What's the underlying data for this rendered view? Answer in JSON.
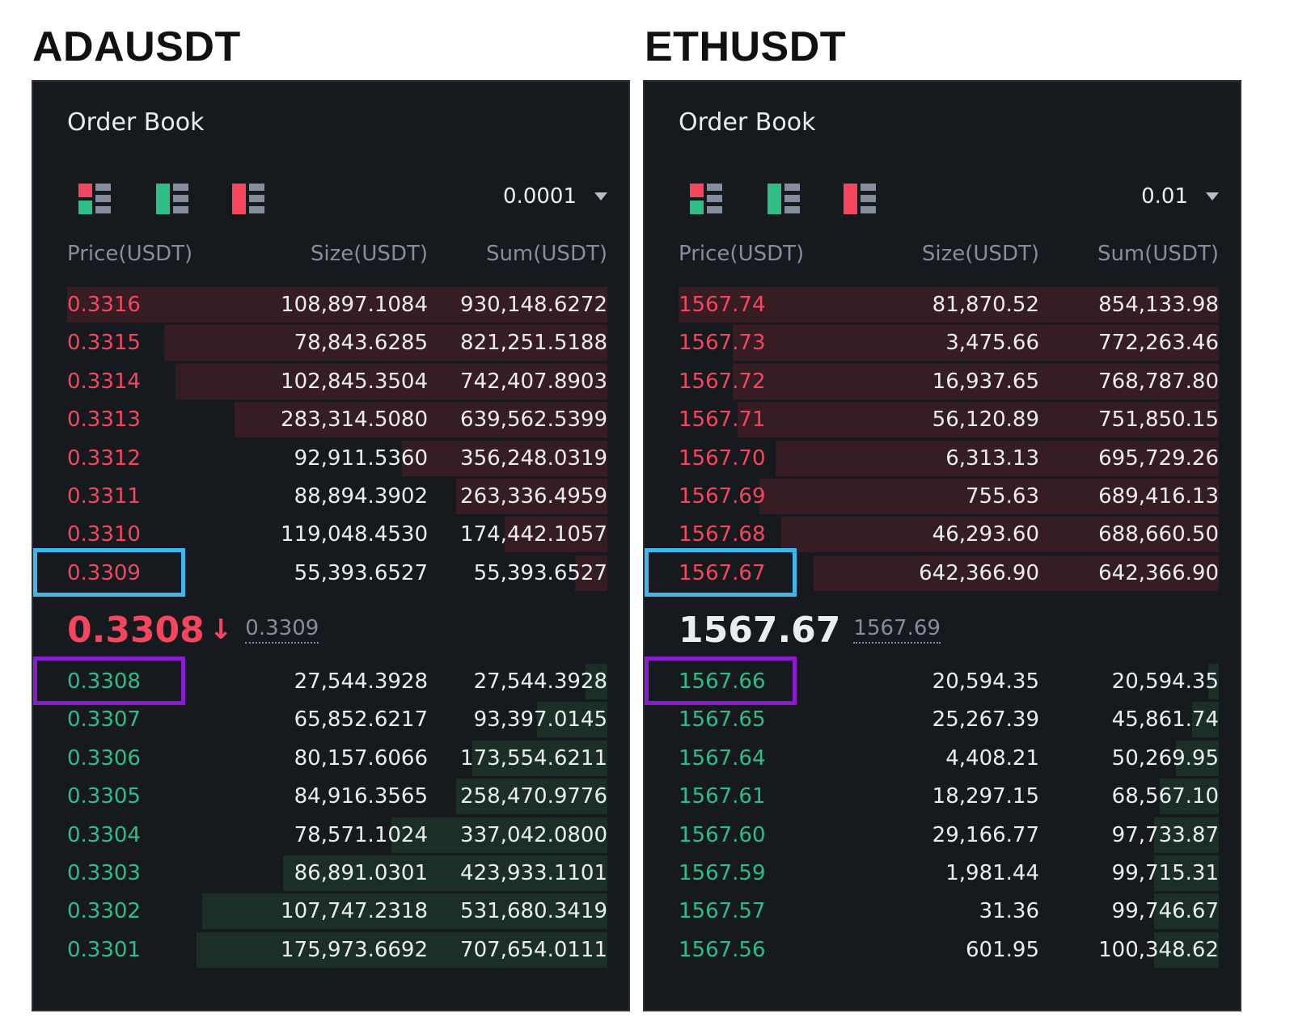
{
  "panels": [
    {
      "pair": "ADAUSDT",
      "title": "Order Book",
      "precision": "0.0001",
      "headers": {
        "price": "Price(USDT)",
        "size": "Size(USDT)",
        "sum": "Sum(USDT)"
      },
      "asks": [
        {
          "price": "0.3316",
          "size": "108,897.1084",
          "sum": "930,148.6272",
          "depth": 1.0
        },
        {
          "price": "0.3315",
          "size": "78,843.6285",
          "sum": "821,251.5188",
          "depth": 0.82
        },
        {
          "price": "0.3314",
          "size": "102,845.3504",
          "sum": "742,407.8903",
          "depth": 0.8
        },
        {
          "price": "0.3313",
          "size": "283,314.5080",
          "sum": "639,562.5399",
          "depth": 0.69
        },
        {
          "price": "0.3312",
          "size": "92,911.5360",
          "sum": "356,248.0319",
          "depth": 0.38
        },
        {
          "price": "0.3311",
          "size": "88,894.3902",
          "sum": "263,336.4959",
          "depth": 0.28
        },
        {
          "price": "0.3310",
          "size": "119,048.4530",
          "sum": "174,442.1057",
          "depth": 0.19
        },
        {
          "price": "0.3309",
          "size": "55,393.6527",
          "sum": "55,393.6527",
          "depth": 0.06
        }
      ],
      "mid": {
        "price": "0.3308",
        "arrow": "↓",
        "color": "#f6465d",
        "mark": "0.3309"
      },
      "bids": [
        {
          "price": "0.3308",
          "size": "27,544.3928",
          "sum": "27,544.3928",
          "depth": 0.04
        },
        {
          "price": "0.3307",
          "size": "65,852.6217",
          "sum": "93,397.0145",
          "depth": 0.13
        },
        {
          "price": "0.3306",
          "size": "80,157.6066",
          "sum": "173,554.6211",
          "depth": 0.25
        },
        {
          "price": "0.3305",
          "size": "84,916.3565",
          "sum": "258,470.9776",
          "depth": 0.28
        },
        {
          "price": "0.3304",
          "size": "78,571.1024",
          "sum": "337,042.0800",
          "depth": 0.4
        },
        {
          "price": "0.3303",
          "size": "86,891.0301",
          "sum": "423,933.1101",
          "depth": 0.6
        },
        {
          "price": "0.3302",
          "size": "107,747.2318",
          "sum": "531,680.3419",
          "depth": 0.75
        },
        {
          "price": "0.3301",
          "size": "175,973.6692",
          "sum": "707,654.0111",
          "depth": 0.76
        }
      ]
    },
    {
      "pair": "ETHUSDT",
      "title": "Order Book",
      "precision": "0.01",
      "headers": {
        "price": "Price(USDT)",
        "size": "Size(USDT)",
        "sum": "Sum(USDT)"
      },
      "asks": [
        {
          "price": "1567.74",
          "size": "81,870.52",
          "sum": "854,133.98",
          "depth": 1.0
        },
        {
          "price": "1567.73",
          "size": "3,475.66",
          "sum": "772,263.46",
          "depth": 0.9
        },
        {
          "price": "1567.72",
          "size": "16,937.65",
          "sum": "768,787.80",
          "depth": 0.9
        },
        {
          "price": "1567.71",
          "size": "56,120.89",
          "sum": "751,850.15",
          "depth": 0.89
        },
        {
          "price": "1567.70",
          "size": "6,313.13",
          "sum": "695,729.26",
          "depth": 0.82
        },
        {
          "price": "1567.69",
          "size": "755.63",
          "sum": "689,416.13",
          "depth": 0.85
        },
        {
          "price": "1567.68",
          "size": "46,293.60",
          "sum": "688,660.50",
          "depth": 0.81
        },
        {
          "price": "1567.67",
          "size": "642,366.90",
          "sum": "642,366.90",
          "depth": 0.75
        }
      ],
      "mid": {
        "price": "1567.67",
        "arrow": "",
        "color": "#eaecef",
        "mark": "1567.69"
      },
      "bids": [
        {
          "price": "1567.66",
          "size": "20,594.35",
          "sum": "20,594.35",
          "depth": 0.02
        },
        {
          "price": "1567.65",
          "size": "25,267.39",
          "sum": "45,861.74",
          "depth": 0.05
        },
        {
          "price": "1567.64",
          "size": "4,408.21",
          "sum": "50,269.95",
          "depth": 0.08
        },
        {
          "price": "1567.61",
          "size": "18,297.15",
          "sum": "68,567.10",
          "depth": 0.11
        },
        {
          "price": "1567.60",
          "size": "29,166.77",
          "sum": "97,733.87",
          "depth": 0.12
        },
        {
          "price": "1567.59",
          "size": "1,981.44",
          "sum": "99,715.31",
          "depth": 0.12
        },
        {
          "price": "1567.57",
          "size": "31.36",
          "sum": "99,746.67",
          "depth": 0.12
        },
        {
          "price": "1567.56",
          "size": "601.95",
          "sum": "100,348.62",
          "depth": 0.12
        }
      ]
    }
  ],
  "colors": {
    "ask": "#f6465d",
    "bid": "#2ebd85",
    "highlight_ask": "#3fb7ea",
    "highlight_bid": "#8a1ccf"
  },
  "icons": [
    "order-book-both-icon",
    "order-book-bids-icon",
    "order-book-asks-icon"
  ]
}
